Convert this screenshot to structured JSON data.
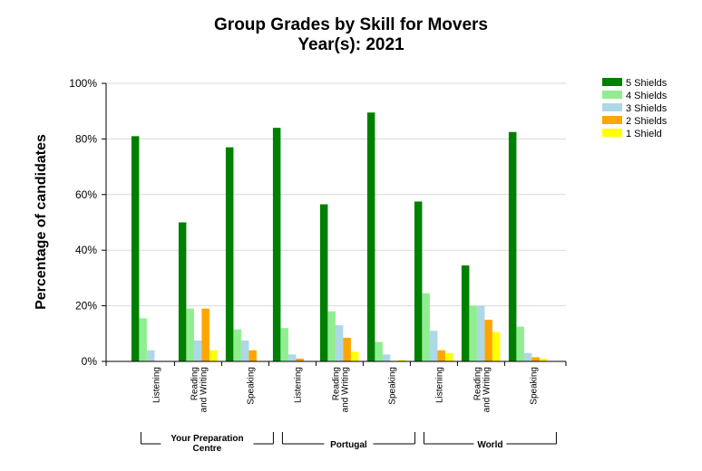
{
  "chart_data": {
    "type": "bar",
    "title": "Group Grades by Skill for Movers",
    "subtitle": "Year(s): 2021",
    "ylabel": "Percentage of candidates",
    "xlabel": "",
    "ylim": [
      0,
      100
    ],
    "yticks": [
      "0%",
      "20%",
      "40%",
      "60%",
      "80%",
      "100%"
    ],
    "grid": true,
    "legend_position": "top-right",
    "groups": [
      {
        "label": "Your Preparation Centre",
        "label_lines": [
          "Your Preparation",
          "Centre"
        ]
      },
      {
        "label": "Portugal",
        "label_lines": [
          "Portugal"
        ]
      },
      {
        "label": "World",
        "label_lines": [
          "World"
        ]
      }
    ],
    "categories": [
      {
        "label": "Listening",
        "lines": [
          "Listening"
        ],
        "group": 0
      },
      {
        "label": "Reading and Writing",
        "lines": [
          "Reading",
          "and Writing"
        ],
        "group": 0
      },
      {
        "label": "Speaking",
        "lines": [
          "Speaking"
        ],
        "group": 0
      },
      {
        "label": "Listening",
        "lines": [
          "Listening"
        ],
        "group": 1
      },
      {
        "label": "Reading and Writing",
        "lines": [
          "Reading",
          "and Writing"
        ],
        "group": 1
      },
      {
        "label": "Speaking",
        "lines": [
          "Speaking"
        ],
        "group": 1
      },
      {
        "label": "Listening",
        "lines": [
          "Listening"
        ],
        "group": 2
      },
      {
        "label": "Reading and Writing",
        "lines": [
          "Reading",
          "and Writing"
        ],
        "group": 2
      },
      {
        "label": "Speaking",
        "lines": [
          "Speaking"
        ],
        "group": 2
      }
    ],
    "series": [
      {
        "name": "5 Shields",
        "color": "#008000",
        "values": [
          81,
          50,
          77,
          84,
          56.5,
          89.5,
          57.5,
          34.5,
          82.5
        ]
      },
      {
        "name": "4 Shields",
        "color": "#90EE90",
        "values": [
          15.5,
          19,
          11.5,
          12,
          18,
          7,
          24.5,
          20,
          12.5
        ]
      },
      {
        "name": "3 Shields",
        "color": "#ADD8E6",
        "values": [
          4,
          7.5,
          7.5,
          2.5,
          13,
          2.5,
          11,
          20,
          3
        ]
      },
      {
        "name": "2 Shields",
        "color": "#FFA500",
        "values": [
          0,
          19,
          4,
          1,
          8.5,
          0,
          4,
          15,
          1.5
        ]
      },
      {
        "name": "1 Shield",
        "color": "#FFFF00",
        "values": [
          0,
          4,
          0,
          0,
          3.5,
          0.5,
          3,
          10.5,
          1
        ]
      }
    ]
  }
}
